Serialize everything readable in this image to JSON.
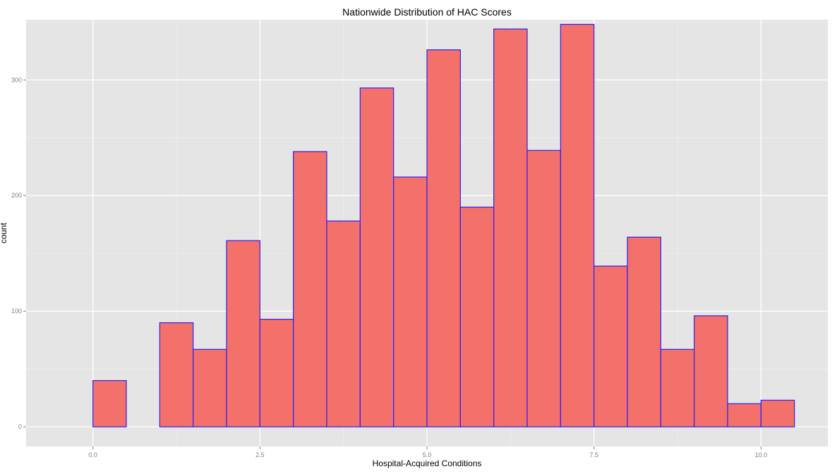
{
  "chart_data": {
    "type": "bar",
    "title": "Nationwide Distribution of HAC Scores",
    "xlabel": "Hospital-Acquired Conditions",
    "ylabel": "count",
    "xlim": [
      -1.0,
      11.0
    ],
    "ylim": [
      -17,
      352
    ],
    "x_ticks": [
      0.0,
      2.5,
      5.0,
      7.5,
      10.0
    ],
    "x_tick_labels": [
      "0.0",
      "2.5",
      "5.0",
      "7.5",
      "10.0"
    ],
    "y_ticks": [
      0,
      100,
      200,
      300
    ],
    "y_tick_labels": [
      "0",
      "100",
      "200",
      "300"
    ],
    "bin_width": 0.5,
    "bins": [
      {
        "start": -0.5,
        "end": 0.0,
        "count": 0
      },
      {
        "start": 0.0,
        "end": 0.5,
        "count": 40
      },
      {
        "start": 0.5,
        "end": 1.0,
        "count": 0
      },
      {
        "start": 1.0,
        "end": 1.5,
        "count": 90
      },
      {
        "start": 1.5,
        "end": 2.0,
        "count": 67
      },
      {
        "start": 2.0,
        "end": 2.5,
        "count": 161
      },
      {
        "start": 2.5,
        "end": 3.0,
        "count": 93
      },
      {
        "start": 3.0,
        "end": 3.5,
        "count": 238
      },
      {
        "start": 3.5,
        "end": 4.0,
        "count": 178
      },
      {
        "start": 4.0,
        "end": 4.5,
        "count": 293
      },
      {
        "start": 4.5,
        "end": 5.0,
        "count": 216
      },
      {
        "start": 5.0,
        "end": 5.5,
        "count": 326
      },
      {
        "start": 5.5,
        "end": 6.0,
        "count": 190
      },
      {
        "start": 6.0,
        "end": 6.5,
        "count": 344
      },
      {
        "start": 6.5,
        "end": 7.0,
        "count": 239
      },
      {
        "start": 7.0,
        "end": 7.5,
        "count": 348
      },
      {
        "start": 7.5,
        "end": 8.0,
        "count": 139
      },
      {
        "start": 8.0,
        "end": 8.5,
        "count": 164
      },
      {
        "start": 8.5,
        "end": 9.0,
        "count": 67
      },
      {
        "start": 9.0,
        "end": 9.5,
        "count": 96
      },
      {
        "start": 9.5,
        "end": 10.0,
        "count": 20
      },
      {
        "start": 10.0,
        "end": 10.5,
        "count": 23
      }
    ],
    "grid": true,
    "colors": {
      "bar_fill": "#f4716b",
      "bar_stroke": "#2d1ff0",
      "panel_background": "#e5e5e5",
      "grid_major": "#ffffff",
      "grid_minor": "#f0f0f0",
      "tick_text": "#7f7f7f",
      "tick_mark": "#7f7f7f"
    }
  }
}
